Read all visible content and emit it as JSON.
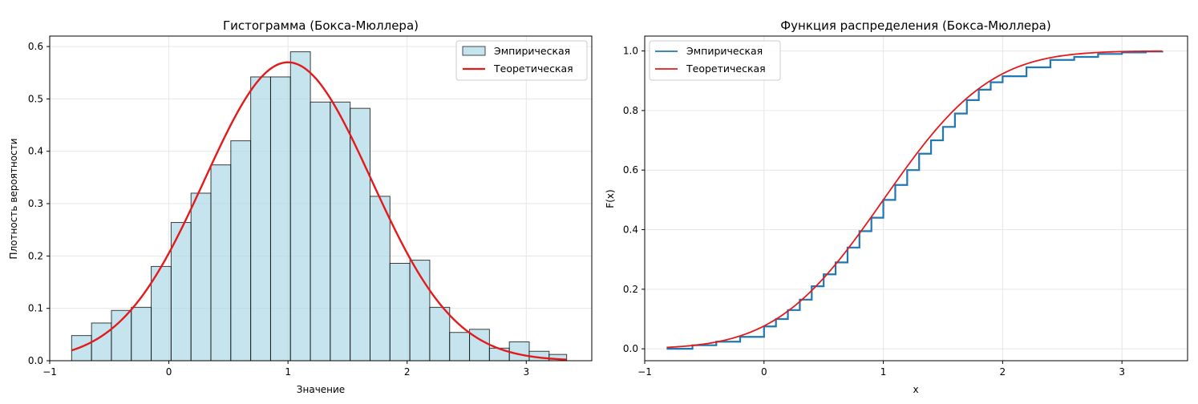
{
  "colors": {
    "hist_fill": "#add8e6",
    "hist_edge": "#000000",
    "empirical_line": "#1f77b4",
    "theoretical_line": "#e31a1c",
    "grid": "#e6e6e6",
    "axes": "#000000"
  },
  "chart_data": [
    {
      "type": "bar",
      "title": "Гистограмма (Бокса-Мюллера)",
      "xlabel": "Значение",
      "ylabel": "Плотность вероятности",
      "xlim": [
        -1.0,
        3.55
      ],
      "ylim": [
        0,
        0.62
      ],
      "xticks": [
        -1,
        0,
        1,
        2,
        3
      ],
      "yticks": [
        0.0,
        0.1,
        0.2,
        0.3,
        0.4,
        0.5,
        0.6
      ],
      "xtick_labels": [
        "−1",
        "0",
        "1",
        "2",
        "3"
      ],
      "ytick_labels": [
        "0.0",
        "0.1",
        "0.2",
        "0.3",
        "0.4",
        "0.5",
        "0.6"
      ],
      "grid": true,
      "legend_position": "top-right",
      "legend": [
        "Эмпирическая",
        "Теоретическая"
      ],
      "bins": {
        "edges": [
          -0.816,
          -0.649,
          -0.482,
          -0.315,
          -0.148,
          0.019,
          0.186,
          0.353,
          0.52,
          0.687,
          0.854,
          1.021,
          1.188,
          1.355,
          1.522,
          1.689,
          1.856,
          2.023,
          2.19,
          2.357,
          2.524,
          2.691,
          2.858,
          3.025,
          3.192,
          3.339
        ],
        "heights": [
          0.048,
          0.072,
          0.096,
          0.102,
          0.18,
          0.264,
          0.32,
          0.374,
          0.42,
          0.542,
          0.542,
          0.59,
          0.494,
          0.494,
          0.482,
          0.314,
          0.186,
          0.192,
          0.102,
          0.054,
          0.06,
          0.024,
          0.036,
          0.018,
          0.012
        ]
      },
      "series": [
        {
          "name": "Эмпирическая",
          "kind": "histogram"
        },
        {
          "name": "Теоретическая",
          "kind": "normal_pdf",
          "mean": 1.0,
          "std": 0.7,
          "x_range": [
            -0.816,
            3.339
          ]
        }
      ]
    },
    {
      "type": "line",
      "title": "Функция распределения (Бокса-Мюллера)",
      "xlabel": "x",
      "ylabel": "F(x)",
      "xlim": [
        -1.0,
        3.55
      ],
      "ylim": [
        -0.04,
        1.05
      ],
      "xticks": [
        -1,
        0,
        1,
        2,
        3
      ],
      "yticks": [
        0.0,
        0.2,
        0.4,
        0.6,
        0.8,
        1.0
      ],
      "xtick_labels": [
        "−1",
        "0",
        "1",
        "2",
        "3"
      ],
      "ytick_labels": [
        "0.0",
        "0.2",
        "0.4",
        "0.6",
        "0.8",
        "1.0"
      ],
      "grid": true,
      "legend_position": "top-left",
      "legend": [
        "Эмпирическая",
        "Теоретическая"
      ],
      "series": [
        {
          "name": "Эмпирическая",
          "x": [
            -0.816,
            -0.6,
            -0.4,
            -0.2,
            0.0,
            0.1,
            0.2,
            0.3,
            0.4,
            0.5,
            0.6,
            0.7,
            0.8,
            0.9,
            1.0,
            1.1,
            1.2,
            1.3,
            1.4,
            1.5,
            1.6,
            1.7,
            1.8,
            1.9,
            2.0,
            2.2,
            2.4,
            2.6,
            2.8,
            3.0,
            3.2,
            3.339
          ],
          "y": [
            0.0,
            0.012,
            0.024,
            0.04,
            0.075,
            0.1,
            0.13,
            0.165,
            0.21,
            0.25,
            0.29,
            0.34,
            0.395,
            0.44,
            0.5,
            0.55,
            0.6,
            0.655,
            0.7,
            0.745,
            0.79,
            0.835,
            0.87,
            0.895,
            0.915,
            0.945,
            0.97,
            0.98,
            0.99,
            0.995,
            0.998,
            1.0
          ]
        },
        {
          "name": "Теоретическая",
          "kind": "normal_cdf",
          "mean": 1.0,
          "std": 0.7,
          "x_range": [
            -0.816,
            3.339
          ]
        }
      ]
    }
  ]
}
